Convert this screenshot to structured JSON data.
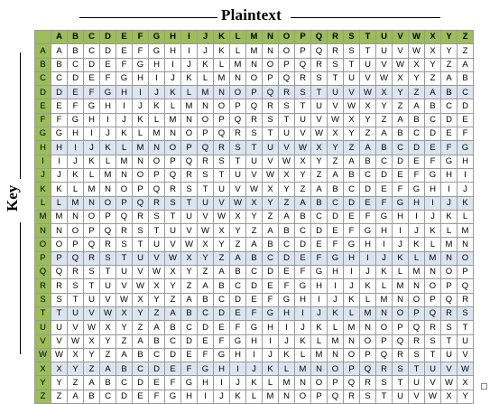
{
  "title": "Plaintext",
  "side_label": "Key",
  "header": [
    "A",
    "B",
    "C",
    "D",
    "E",
    "F",
    "G",
    "H",
    "I",
    "J",
    "K",
    "L",
    "M",
    "N",
    "O",
    "P",
    "Q",
    "R",
    "S",
    "T",
    "U",
    "V",
    "W",
    "X",
    "Y",
    "Z"
  ],
  "rows": [
    {
      "key": "A",
      "cells": [
        "A",
        "B",
        "C",
        "D",
        "E",
        "F",
        "G",
        "H",
        "I",
        "J",
        "K",
        "L",
        "M",
        "N",
        "O",
        "P",
        "Q",
        "R",
        "S",
        "T",
        "U",
        "V",
        "W",
        "X",
        "Y",
        "Z"
      ]
    },
    {
      "key": "B",
      "cells": [
        "B",
        "C",
        "D",
        "E",
        "F",
        "G",
        "H",
        "I",
        "J",
        "K",
        "L",
        "M",
        "N",
        "O",
        "P",
        "Q",
        "R",
        "S",
        "T",
        "U",
        "V",
        "W",
        "X",
        "Y",
        "Z",
        "A"
      ]
    },
    {
      "key": "C",
      "cells": [
        "C",
        "D",
        "E",
        "F",
        "G",
        "H",
        "I",
        "J",
        "K",
        "L",
        "M",
        "N",
        "O",
        "P",
        "Q",
        "R",
        "S",
        "T",
        "U",
        "V",
        "W",
        "X",
        "Y",
        "Z",
        "A",
        "B"
      ]
    },
    {
      "key": "D",
      "cells": [
        "D",
        "E",
        "F",
        "G",
        "H",
        "I",
        "J",
        "K",
        "L",
        "M",
        "N",
        "O",
        "P",
        "Q",
        "R",
        "S",
        "T",
        "U",
        "V",
        "W",
        "X",
        "Y",
        "Z",
        "A",
        "B",
        "C"
      ]
    },
    {
      "key": "E",
      "cells": [
        "E",
        "F",
        "G",
        "H",
        "I",
        "J",
        "K",
        "L",
        "M",
        "N",
        "O",
        "P",
        "Q",
        "R",
        "S",
        "T",
        "U",
        "V",
        "W",
        "X",
        "Y",
        "Z",
        "A",
        "B",
        "C",
        "D"
      ]
    },
    {
      "key": "F",
      "cells": [
        "F",
        "G",
        "H",
        "I",
        "J",
        "K",
        "L",
        "M",
        "N",
        "O",
        "P",
        "Q",
        "R",
        "S",
        "T",
        "U",
        "V",
        "W",
        "X",
        "Y",
        "Z",
        "A",
        "B",
        "C",
        "D",
        "E"
      ]
    },
    {
      "key": "G",
      "cells": [
        "G",
        "H",
        "I",
        "J",
        "K",
        "L",
        "M",
        "N",
        "O",
        "P",
        "Q",
        "R",
        "S",
        "T",
        "U",
        "V",
        "W",
        "X",
        "Y",
        "Z",
        "A",
        "B",
        "C",
        "D",
        "E",
        "F"
      ]
    },
    {
      "key": "H",
      "cells": [
        "H",
        "I",
        "J",
        "K",
        "L",
        "M",
        "N",
        "O",
        "P",
        "Q",
        "R",
        "S",
        "T",
        "U",
        "V",
        "W",
        "X",
        "Y",
        "Z",
        "A",
        "B",
        "C",
        "D",
        "E",
        "F",
        "G"
      ]
    },
    {
      "key": "I",
      "cells": [
        "I",
        "J",
        "K",
        "L",
        "M",
        "N",
        "O",
        "P",
        "Q",
        "R",
        "S",
        "T",
        "U",
        "V",
        "W",
        "X",
        "Y",
        "Z",
        "A",
        "B",
        "C",
        "D",
        "E",
        "F",
        "G",
        "H"
      ]
    },
    {
      "key": "J",
      "cells": [
        "J",
        "K",
        "L",
        "M",
        "N",
        "O",
        "P",
        "Q",
        "R",
        "S",
        "T",
        "U",
        "V",
        "W",
        "X",
        "Y",
        "Z",
        "A",
        "B",
        "C",
        "D",
        "E",
        "F",
        "G",
        "H",
        "I"
      ]
    },
    {
      "key": "K",
      "cells": [
        "K",
        "L",
        "M",
        "N",
        "O",
        "P",
        "Q",
        "R",
        "S",
        "T",
        "U",
        "V",
        "W",
        "X",
        "Y",
        "Z",
        "A",
        "B",
        "C",
        "D",
        "E",
        "F",
        "G",
        "H",
        "I",
        "J"
      ]
    },
    {
      "key": "L",
      "cells": [
        "L",
        "M",
        "N",
        "O",
        "P",
        "Q",
        "R",
        "S",
        "T",
        "U",
        "V",
        "W",
        "X",
        "Y",
        "Z",
        "A",
        "B",
        "C",
        "D",
        "E",
        "F",
        "G",
        "H",
        "I",
        "J",
        "K"
      ]
    },
    {
      "key": "M",
      "cells": [
        "M",
        "N",
        "O",
        "P",
        "Q",
        "R",
        "S",
        "T",
        "U",
        "V",
        "W",
        "X",
        "Y",
        "Z",
        "A",
        "B",
        "C",
        "D",
        "E",
        "F",
        "G",
        "H",
        "I",
        "J",
        "K",
        "L"
      ]
    },
    {
      "key": "N",
      "cells": [
        "N",
        "O",
        "P",
        "Q",
        "R",
        "S",
        "T",
        "U",
        "V",
        "W",
        "X",
        "Y",
        "Z",
        "A",
        "B",
        "C",
        "D",
        "E",
        "F",
        "G",
        "H",
        "I",
        "J",
        "K",
        "L",
        "M"
      ]
    },
    {
      "key": "O",
      "cells": [
        "O",
        "P",
        "Q",
        "R",
        "S",
        "T",
        "U",
        "V",
        "W",
        "X",
        "Y",
        "Z",
        "A",
        "B",
        "C",
        "D",
        "E",
        "F",
        "G",
        "H",
        "I",
        "J",
        "K",
        "L",
        "M",
        "N"
      ]
    },
    {
      "key": "P",
      "cells": [
        "P",
        "Q",
        "R",
        "S",
        "T",
        "U",
        "V",
        "W",
        "X",
        "Y",
        "Z",
        "A",
        "B",
        "C",
        "D",
        "E",
        "F",
        "G",
        "H",
        "I",
        "J",
        "K",
        "L",
        "M",
        "N",
        "O"
      ]
    },
    {
      "key": "Q",
      "cells": [
        "Q",
        "R",
        "S",
        "T",
        "U",
        "V",
        "W",
        "X",
        "Y",
        "Z",
        "A",
        "B",
        "C",
        "D",
        "E",
        "F",
        "G",
        "H",
        "I",
        "J",
        "K",
        "L",
        "M",
        "N",
        "O",
        "P"
      ]
    },
    {
      "key": "R",
      "cells": [
        "R",
        "S",
        "T",
        "U",
        "V",
        "W",
        "X",
        "Y",
        "Z",
        "A",
        "B",
        "C",
        "D",
        "E",
        "F",
        "G",
        "H",
        "I",
        "J",
        "K",
        "L",
        "M",
        "N",
        "O",
        "P",
        "Q"
      ]
    },
    {
      "key": "S",
      "cells": [
        "S",
        "T",
        "U",
        "V",
        "W",
        "X",
        "Y",
        "Z",
        "A",
        "B",
        "C",
        "D",
        "E",
        "F",
        "G",
        "H",
        "I",
        "J",
        "K",
        "L",
        "M",
        "N",
        "O",
        "P",
        "Q",
        "R"
      ]
    },
    {
      "key": "T",
      "cells": [
        "T",
        "U",
        "V",
        "W",
        "X",
        "Y",
        "Z",
        "A",
        "B",
        "C",
        "D",
        "E",
        "F",
        "G",
        "H",
        "I",
        "J",
        "K",
        "L",
        "M",
        "N",
        "O",
        "P",
        "Q",
        "R",
        "S"
      ]
    },
    {
      "key": "U",
      "cells": [
        "U",
        "V",
        "W",
        "X",
        "Y",
        "Z",
        "A",
        "B",
        "C",
        "D",
        "E",
        "F",
        "G",
        "H",
        "I",
        "J",
        "K",
        "L",
        "M",
        "N",
        "O",
        "P",
        "Q",
        "R",
        "S",
        "T"
      ]
    },
    {
      "key": "V",
      "cells": [
        "V",
        "W",
        "X",
        "Y",
        "Z",
        "A",
        "B",
        "C",
        "D",
        "E",
        "F",
        "G",
        "H",
        "I",
        "J",
        "K",
        "L",
        "M",
        "N",
        "O",
        "P",
        "Q",
        "R",
        "S",
        "T",
        "U"
      ]
    },
    {
      "key": "W",
      "cells": [
        "W",
        "X",
        "Y",
        "Z",
        "A",
        "B",
        "C",
        "D",
        "E",
        "F",
        "G",
        "H",
        "I",
        "J",
        "K",
        "L",
        "M",
        "N",
        "O",
        "P",
        "Q",
        "R",
        "S",
        "T",
        "U",
        "V"
      ]
    },
    {
      "key": "X",
      "cells": [
        "X",
        "Y",
        "Z",
        "A",
        "B",
        "C",
        "D",
        "E",
        "F",
        "G",
        "H",
        "I",
        "J",
        "K",
        "L",
        "M",
        "N",
        "O",
        "P",
        "Q",
        "R",
        "S",
        "T",
        "U",
        "V",
        "W"
      ]
    },
    {
      "key": "Y",
      "cells": [
        "Y",
        "Z",
        "A",
        "B",
        "C",
        "D",
        "E",
        "F",
        "G",
        "H",
        "I",
        "J",
        "K",
        "L",
        "M",
        "N",
        "O",
        "P",
        "Q",
        "R",
        "S",
        "T",
        "U",
        "V",
        "W",
        "X"
      ]
    },
    {
      "key": "Z",
      "cells": [
        "Z",
        "A",
        "B",
        "C",
        "D",
        "E",
        "F",
        "G",
        "H",
        "I",
        "J",
        "K",
        "L",
        "M",
        "N",
        "O",
        "P",
        "Q",
        "R",
        "S",
        "T",
        "U",
        "V",
        "W",
        "X",
        "Y"
      ]
    }
  ],
  "highlighted_rows": [
    "D",
    "H",
    "L",
    "P",
    "T",
    "X"
  ],
  "colors": {
    "header_green": "#9cbd59",
    "band_blue": "#dbe5f1",
    "grid": "#9a9a9a"
  }
}
